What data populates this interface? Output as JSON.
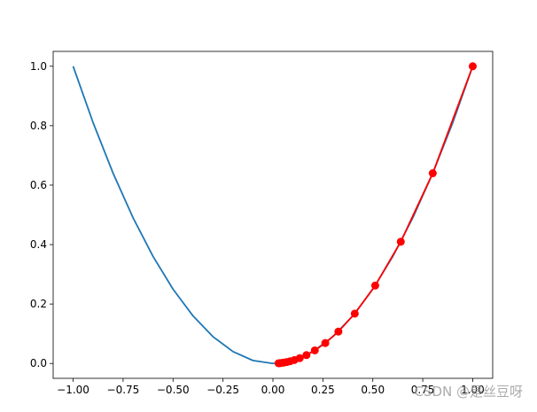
{
  "chart_data": {
    "type": "line",
    "xlim": [
      -1.1,
      1.1
    ],
    "ylim": [
      -0.05,
      1.05
    ],
    "xticks": [
      {
        "value": -1,
        "label": "−1.00"
      },
      {
        "value": -0.75,
        "label": "−0.75"
      },
      {
        "value": -0.5,
        "label": "−0.50"
      },
      {
        "value": -0.25,
        "label": "−0.25"
      },
      {
        "value": 0,
        "label": "0.00"
      },
      {
        "value": 0.25,
        "label": "0.25"
      },
      {
        "value": 0.5,
        "label": "0.50"
      },
      {
        "value": 0.75,
        "label": "0.75"
      },
      {
        "value": 1,
        "label": "1.00"
      }
    ],
    "yticks": [
      {
        "value": 0,
        "label": "0.0"
      },
      {
        "value": 0.2,
        "label": "0.2"
      },
      {
        "value": 0.4,
        "label": "0.4"
      },
      {
        "value": 0.6,
        "label": "0.6"
      },
      {
        "value": 0.8,
        "label": "0.8"
      },
      {
        "value": 1,
        "label": "1.0"
      }
    ],
    "series": [
      {
        "color": "#1f77b4",
        "marker": false,
        "x": [
          -1,
          -0.9,
          -0.8,
          -0.7,
          -0.6,
          -0.5,
          -0.4,
          -0.3,
          -0.2,
          -0.1,
          0,
          0.1,
          0.2,
          0.3,
          0.4,
          0.5,
          0.6,
          0.7,
          0.8,
          0.9,
          1
        ],
        "values": [
          1,
          0.81,
          0.64,
          0.49,
          0.36,
          0.25,
          0.16,
          0.09,
          0.04,
          0.01,
          0,
          0.01,
          0.04,
          0.09,
          0.16,
          0.25,
          0.36,
          0.49,
          0.64,
          0.81,
          1
        ]
      },
      {
        "color": "#ff0000",
        "marker": true,
        "x": [
          1,
          0.8,
          0.64,
          0.512,
          0.4096,
          0.3277,
          0.2621,
          0.2097,
          0.1678,
          0.1342,
          0.1074,
          0.0859,
          0.0687,
          0.055,
          0.044,
          0.0352,
          0.0281
        ],
        "values": [
          1,
          0.64,
          0.4096,
          0.2621,
          0.1678,
          0.1074,
          0.0687,
          0.044,
          0.0281,
          0.018,
          0.0115,
          0.0074,
          0.0047,
          0.003,
          0.0019,
          0.0012,
          0.0008
        ]
      }
    ],
    "watermark": "CSDN @是丝豆呀"
  }
}
